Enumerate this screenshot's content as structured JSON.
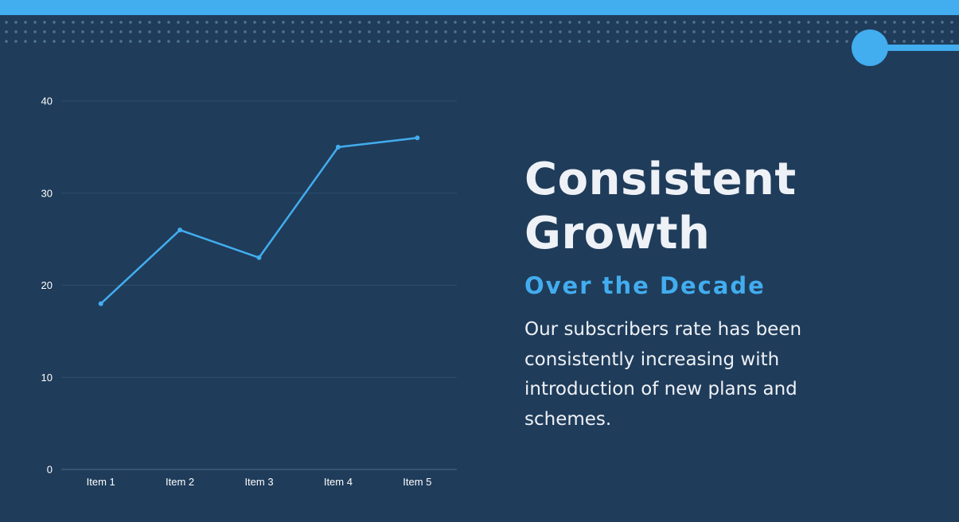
{
  "heading": {
    "line1": "Consistent",
    "line2": "Growth",
    "subtitle": "Over the Decade",
    "description": "Our subscribers rate has been consistently increasing with introduction of new plans and schemes."
  },
  "colors": {
    "background": "#1f3c5a",
    "accent": "#42adef",
    "text": "#eef1f6",
    "grid": "#2f4f6e"
  },
  "chart_data": {
    "type": "line",
    "categories": [
      "Item 1",
      "Item 2",
      "Item 3",
      "Item 4",
      "Item 5"
    ],
    "series": [
      {
        "values": [
          18,
          26,
          23,
          35,
          36
        ]
      }
    ],
    "yticks": [
      0,
      10,
      20,
      30,
      40
    ],
    "ylim": [
      0,
      40
    ],
    "grid": true,
    "legend": "none"
  }
}
